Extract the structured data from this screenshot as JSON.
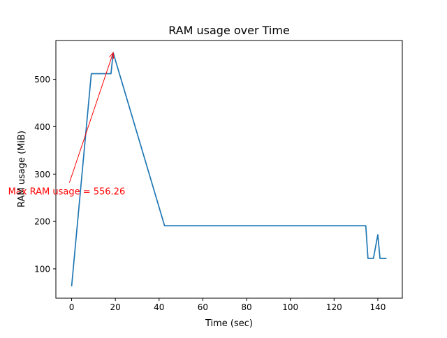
{
  "chart_data": {
    "type": "line",
    "title": "RAM usage over Time",
    "xlabel": "Time (sec)",
    "ylabel": "RAM usage (MiB)",
    "xlim": [
      -7.2,
      151.2
    ],
    "ylim": [
      38,
      582
    ],
    "xticks": [
      0,
      20,
      40,
      60,
      80,
      100,
      120,
      140
    ],
    "yticks": [
      100,
      200,
      300,
      400,
      500
    ],
    "grid": false,
    "series": [
      {
        "color": "#1f77b4",
        "x": [
          0,
          9,
          18,
          19,
          42.5,
          134.5,
          135.5,
          138,
          140,
          141,
          144
        ],
        "y": [
          63,
          512,
          512,
          556.26,
          191,
          191,
          122,
          122,
          172,
          122,
          122
        ]
      }
    ],
    "annotation": {
      "text": "Max RAM usage = 556.26",
      "point": [
        19,
        556.26
      ],
      "text_anchor_point": [
        -1,
        282
      ],
      "color": "#ff0000"
    }
  }
}
